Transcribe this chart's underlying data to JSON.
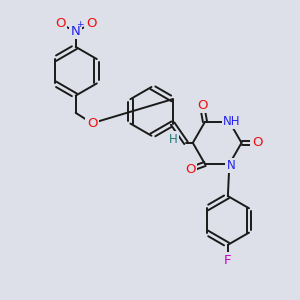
{
  "background_color": "#dde0e8",
  "bond_color": "#1a1a1a",
  "atom_colors": {
    "O": "#ee1111",
    "N": "#2222ee",
    "F": "#cc00cc",
    "H": "#227777",
    "C": "#1a1a1a"
  },
  "figsize": [
    3.0,
    3.0
  ],
  "dpi": 100
}
